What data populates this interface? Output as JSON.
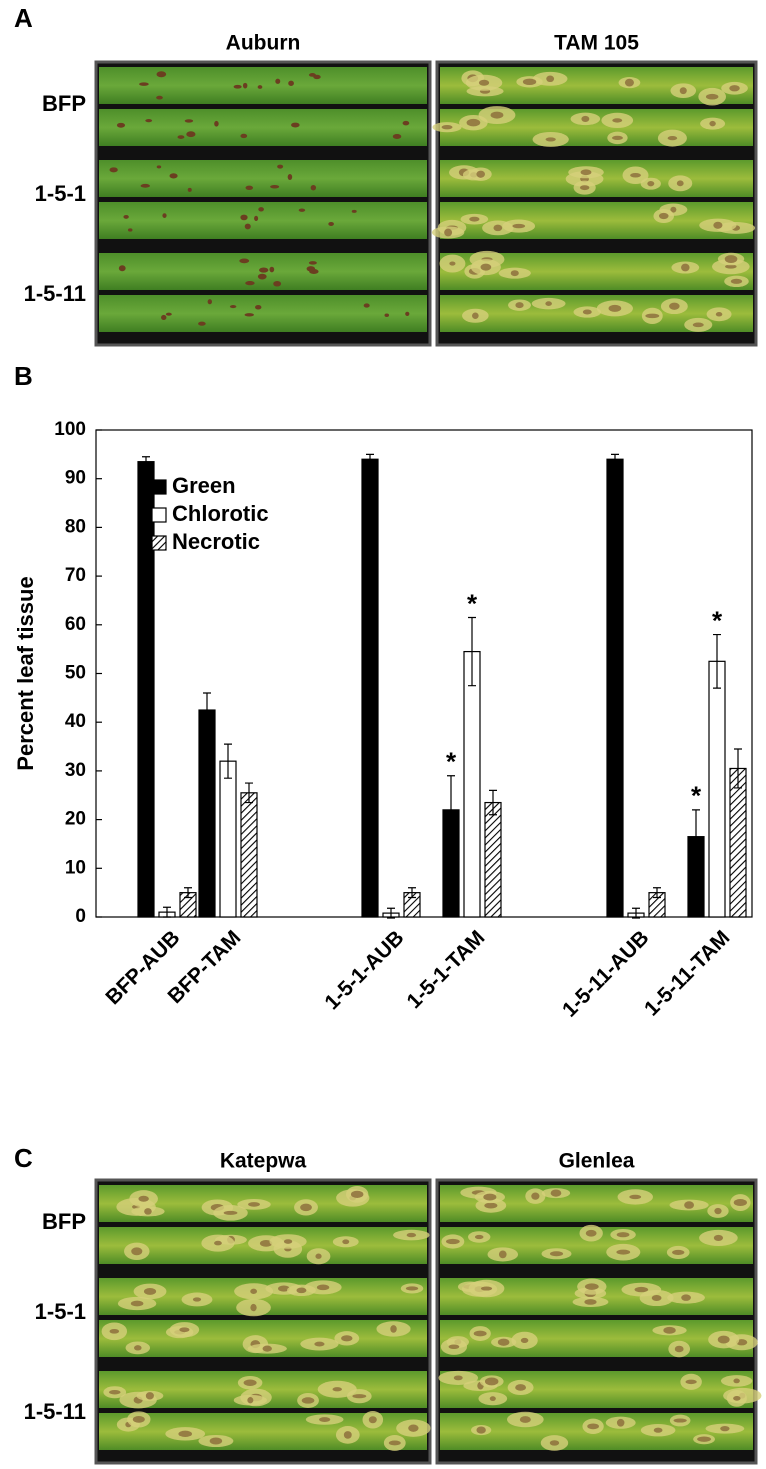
{
  "panel_a": {
    "label": "A",
    "columns": [
      "Auburn",
      "TAM 105"
    ],
    "rows": [
      "BFP",
      "1-5-1",
      "1-5-11"
    ]
  },
  "panel_b_label": "B",
  "chart_data": {
    "type": "bar",
    "ylabel": "Percent leaf tissue",
    "categories": [
      "BFP-AUB",
      "BFP-TAM",
      "1-5-1-AUB",
      "1-5-1-TAM",
      "1-5-11-AUB",
      "1-5-11-TAM"
    ],
    "series": [
      {
        "name": "Green",
        "color": "#000000",
        "values": [
          93.5,
          42.5,
          94,
          22,
          94,
          16.5
        ],
        "errors": [
          1,
          3.5,
          1,
          7,
          1,
          5.5
        ]
      },
      {
        "name": "Chlorotic",
        "color": "#ffffff",
        "values": [
          1,
          32,
          0.8,
          54.5,
          0.8,
          52.5
        ],
        "errors": [
          1,
          3.5,
          1,
          7,
          1,
          5.5
        ]
      },
      {
        "name": "Necrotic",
        "color": "#ffffff",
        "hatch": true,
        "values": [
          5,
          25.5,
          5,
          23.5,
          5,
          30.5
        ],
        "errors": [
          1,
          2,
          1,
          2.5,
          1,
          4
        ]
      }
    ],
    "annotations": [
      {
        "text": "*",
        "series": 0,
        "category": 3
      },
      {
        "text": "*",
        "series": 1,
        "category": 3
      },
      {
        "text": "*",
        "series": 0,
        "category": 5
      },
      {
        "text": "*",
        "series": 1,
        "category": 5
      }
    ],
    "ylim": [
      0,
      100
    ],
    "yticks": [
      0,
      10,
      20,
      30,
      40,
      50,
      60,
      70,
      80,
      90,
      100
    ],
    "legend": "upper-left"
  },
  "panel_c": {
    "label": "C",
    "columns": [
      "Katepwa",
      "Glenlea"
    ],
    "rows": [
      "BFP",
      "1-5-1",
      "1-5-11"
    ]
  }
}
